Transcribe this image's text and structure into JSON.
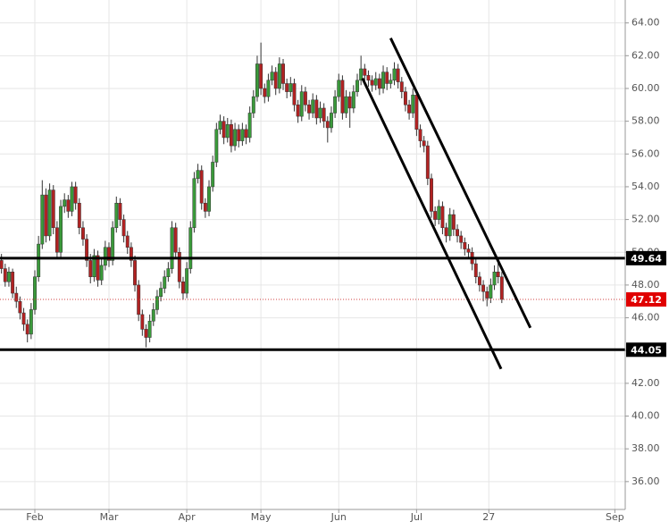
{
  "chart_data": {
    "type": "candlestick",
    "xlim": [
      -9.4,
      159.3
    ],
    "ylim": [
      34.3,
      65.4
    ],
    "xticks": [
      {
        "value": 0,
        "label": "Feb"
      },
      {
        "value": 20,
        "label": "Mar"
      },
      {
        "value": 41,
        "label": "Apr"
      },
      {
        "value": 61,
        "label": "May"
      },
      {
        "value": 82,
        "label": "Jun"
      },
      {
        "value": 103,
        "label": "Jul"
      },
      {
        "value": 122.5,
        "label": "27"
      },
      {
        "value": 156.5,
        "label": "Sep"
      }
    ],
    "yticks": [
      {
        "value": 36,
        "label": "36.00"
      },
      {
        "value": 38,
        "label": "38.00"
      },
      {
        "value": 40,
        "label": "40.00"
      },
      {
        "value": 42,
        "label": "42.00"
      },
      {
        "value": 44,
        "label": "44.00"
      },
      {
        "value": 46,
        "label": "46.00"
      },
      {
        "value": 48,
        "label": "48.00"
      },
      {
        "value": 50,
        "label": "50.00"
      },
      {
        "value": 52,
        "label": "52.00"
      },
      {
        "value": 54,
        "label": "54.00"
      },
      {
        "value": 56,
        "label": "56.00"
      },
      {
        "value": 58,
        "label": "58.00"
      },
      {
        "value": 60,
        "label": "60.00"
      },
      {
        "value": 62,
        "label": "62.00"
      },
      {
        "value": 64,
        "label": "64.00"
      }
    ],
    "grid": true,
    "up_color": "#3a9a3a",
    "down_color": "#b22222",
    "levels": [
      49.64,
      44.05
    ],
    "last_price": 47.12,
    "trendlines": [
      {
        "x": [
          88.4,
          125.8
        ],
        "y": [
          60.62,
          42.88
        ]
      },
      {
        "x": [
          96.0,
          133.7
        ],
        "y": [
          63.07,
          45.39
        ]
      }
    ],
    "x": [
      -9,
      -8,
      -7,
      -6,
      -5,
      -4,
      -3,
      -2,
      -1,
      0,
      1,
      2,
      3,
      4,
      5,
      6,
      7,
      8,
      9,
      10,
      11,
      12,
      13,
      14,
      15,
      16,
      17,
      18,
      19,
      20,
      21,
      22,
      23,
      24,
      25,
      26,
      27,
      28,
      29,
      30,
      31,
      32,
      33,
      34,
      35,
      36,
      37,
      38,
      39,
      40,
      41,
      42,
      43,
      44,
      45,
      46,
      47,
      48,
      49,
      50,
      51,
      52,
      53,
      54,
      55,
      56,
      57,
      58,
      59,
      60,
      61,
      62,
      63,
      64,
      65,
      66,
      67,
      68,
      69,
      70,
      71,
      72,
      73,
      74,
      75,
      76,
      77,
      78,
      79,
      80,
      81,
      82,
      83,
      84,
      85,
      86,
      87,
      88,
      89,
      90,
      91,
      92,
      93,
      94,
      95,
      96,
      97,
      98,
      99,
      100,
      101,
      102,
      103,
      104,
      105,
      106,
      107,
      108,
      109,
      110,
      111,
      112,
      113,
      114,
      115,
      116,
      117,
      118,
      119,
      120,
      121,
      122,
      123,
      124,
      125,
      126
    ],
    "ohlc": [
      [
        49.5,
        49.9,
        48.7,
        49.0
      ],
      [
        49.0,
        49.3,
        47.9,
        48.2
      ],
      [
        48.2,
        49.1,
        47.9,
        48.8
      ],
      [
        48.8,
        49.0,
        47.2,
        47.5
      ],
      [
        47.5,
        47.9,
        46.6,
        47.0
      ],
      [
        47.0,
        47.3,
        45.9,
        46.3
      ],
      [
        46.3,
        46.6,
        45.2,
        45.6
      ],
      [
        45.6,
        45.9,
        44.5,
        45.0
      ],
      [
        45.0,
        46.9,
        44.7,
        46.5
      ],
      [
        46.5,
        48.9,
        46.2,
        48.5
      ],
      [
        48.5,
        51.0,
        48.2,
        50.5
      ],
      [
        50.5,
        54.4,
        50.2,
        53.5
      ],
      [
        53.5,
        53.9,
        50.6,
        51.0
      ],
      [
        51.0,
        54.2,
        50.7,
        53.8
      ],
      [
        53.8,
        54.1,
        51.1,
        51.5
      ],
      [
        51.5,
        51.9,
        49.6,
        50.0
      ],
      [
        50.0,
        53.2,
        49.7,
        52.8
      ],
      [
        52.8,
        53.6,
        52.4,
        53.2
      ],
      [
        53.2,
        53.5,
        52.1,
        52.5
      ],
      [
        52.5,
        54.3,
        52.2,
        54.0
      ],
      [
        54.0,
        54.3,
        52.6,
        53.0
      ],
      [
        53.0,
        53.3,
        51.1,
        51.5
      ],
      [
        51.5,
        51.9,
        50.4,
        50.8
      ],
      [
        50.8,
        51.1,
        49.1,
        49.5
      ],
      [
        49.5,
        49.9,
        48.1,
        48.5
      ],
      [
        48.5,
        50.2,
        48.2,
        49.8
      ],
      [
        49.8,
        50.1,
        47.9,
        48.3
      ],
      [
        48.3,
        49.6,
        48.0,
        49.2
      ],
      [
        49.2,
        50.7,
        48.9,
        50.3
      ],
      [
        50.3,
        50.6,
        49.1,
        49.5
      ],
      [
        49.5,
        51.9,
        49.2,
        51.5
      ],
      [
        51.5,
        53.4,
        51.2,
        53.0
      ],
      [
        53.0,
        53.3,
        51.6,
        52.0
      ],
      [
        52.0,
        52.3,
        50.6,
        51.0
      ],
      [
        51.0,
        51.3,
        49.9,
        50.3
      ],
      [
        50.3,
        50.6,
        49.1,
        49.5
      ],
      [
        49.5,
        49.8,
        47.6,
        48.0
      ],
      [
        48.0,
        48.3,
        45.8,
        46.2
      ],
      [
        46.2,
        46.5,
        44.9,
        45.3
      ],
      [
        45.3,
        45.6,
        44.2,
        44.8
      ],
      [
        44.8,
        46.2,
        44.5,
        45.8
      ],
      [
        45.8,
        46.9,
        45.5,
        46.5
      ],
      [
        46.5,
        47.7,
        46.2,
        47.3
      ],
      [
        47.3,
        48.2,
        47.0,
        47.8
      ],
      [
        47.8,
        48.9,
        47.5,
        48.5
      ],
      [
        48.5,
        49.4,
        48.2,
        49.0
      ],
      [
        49.0,
        51.9,
        48.7,
        51.5
      ],
      [
        51.5,
        51.8,
        49.6,
        50.0
      ],
      [
        50.0,
        50.3,
        47.8,
        48.2
      ],
      [
        48.2,
        48.5,
        47.1,
        47.5
      ],
      [
        47.5,
        49.4,
        47.2,
        49.0
      ],
      [
        49.0,
        51.9,
        48.7,
        51.5
      ],
      [
        51.5,
        54.9,
        51.2,
        54.5
      ],
      [
        54.5,
        55.4,
        54.2,
        55.0
      ],
      [
        55.0,
        55.3,
        52.6,
        53.0
      ],
      [
        53.0,
        53.3,
        52.1,
        52.5
      ],
      [
        52.5,
        54.4,
        52.2,
        54.0
      ],
      [
        54.0,
        55.9,
        53.7,
        55.5
      ],
      [
        55.5,
        57.9,
        55.2,
        57.5
      ],
      [
        57.5,
        58.4,
        57.2,
        58.0
      ],
      [
        58.0,
        58.3,
        56.6,
        57.0
      ],
      [
        57.0,
        58.2,
        56.7,
        57.8
      ],
      [
        57.8,
        58.1,
        56.1,
        56.5
      ],
      [
        56.5,
        57.9,
        56.2,
        57.5
      ],
      [
        57.5,
        57.8,
        56.4,
        56.8
      ],
      [
        56.8,
        57.9,
        56.5,
        57.5
      ],
      [
        57.5,
        57.8,
        56.6,
        57.0
      ],
      [
        57.0,
        58.9,
        56.7,
        58.5
      ],
      [
        58.5,
        59.9,
        58.2,
        59.5
      ],
      [
        59.5,
        62.0,
        59.2,
        61.5
      ],
      [
        61.5,
        62.8,
        59.6,
        60.0
      ],
      [
        60.0,
        60.3,
        59.1,
        59.5
      ],
      [
        59.5,
        60.9,
        59.2,
        60.5
      ],
      [
        60.5,
        61.4,
        60.2,
        61.0
      ],
      [
        61.0,
        61.3,
        59.6,
        60.0
      ],
      [
        60.0,
        61.9,
        59.7,
        61.5
      ],
      [
        61.5,
        61.8,
        59.9,
        60.3
      ],
      [
        60.3,
        60.6,
        59.4,
        59.8
      ],
      [
        59.8,
        60.7,
        59.5,
        60.3
      ],
      [
        60.3,
        60.6,
        58.6,
        59.0
      ],
      [
        59.0,
        59.3,
        57.9,
        58.3
      ],
      [
        58.3,
        60.2,
        58.0,
        59.8
      ],
      [
        59.8,
        60.1,
        58.6,
        59.0
      ],
      [
        59.0,
        59.3,
        58.1,
        58.5
      ],
      [
        58.5,
        59.7,
        58.2,
        59.3
      ],
      [
        59.3,
        59.6,
        57.8,
        58.2
      ],
      [
        58.2,
        59.2,
        57.9,
        58.8
      ],
      [
        58.8,
        59.1,
        57.6,
        58.0
      ],
      [
        58.0,
        58.3,
        56.7,
        57.6
      ],
      [
        57.6,
        58.9,
        57.3,
        58.5
      ],
      [
        58.5,
        59.9,
        58.2,
        59.5
      ],
      [
        59.5,
        60.9,
        59.2,
        60.5
      ],
      [
        60.5,
        60.8,
        58.1,
        58.5
      ],
      [
        58.5,
        59.9,
        58.2,
        59.5
      ],
      [
        59.5,
        59.8,
        57.6,
        58.8
      ],
      [
        58.8,
        60.2,
        58.5,
        59.8
      ],
      [
        59.8,
        60.9,
        59.5,
        60.5
      ],
      [
        60.5,
        62.0,
        60.2,
        61.2
      ],
      [
        61.2,
        61.5,
        60.4,
        60.8
      ],
      [
        60.8,
        61.1,
        60.1,
        60.5
      ],
      [
        60.5,
        60.8,
        59.8,
        60.2
      ],
      [
        60.2,
        61.0,
        59.9,
        60.6
      ],
      [
        60.6,
        60.9,
        59.6,
        60.0
      ],
      [
        60.0,
        61.4,
        59.7,
        61.0
      ],
      [
        61.0,
        61.3,
        59.9,
        60.3
      ],
      [
        60.3,
        60.9,
        60.0,
        60.5
      ],
      [
        60.5,
        61.6,
        60.2,
        61.2
      ],
      [
        61.2,
        61.5,
        60.0,
        60.4
      ],
      [
        60.4,
        60.7,
        59.4,
        59.8
      ],
      [
        59.8,
        60.1,
        58.6,
        59.0
      ],
      [
        59.0,
        59.3,
        58.1,
        58.5
      ],
      [
        58.5,
        60.0,
        58.2,
        59.6
      ],
      [
        59.6,
        59.9,
        57.1,
        57.5
      ],
      [
        57.5,
        57.8,
        56.4,
        56.8
      ],
      [
        56.8,
        57.1,
        56.1,
        56.5
      ],
      [
        56.5,
        56.8,
        54.1,
        54.5
      ],
      [
        54.5,
        54.8,
        52.1,
        52.5
      ],
      [
        52.5,
        52.8,
        51.6,
        52.0
      ],
      [
        52.0,
        53.2,
        51.7,
        52.8
      ],
      [
        52.8,
        53.1,
        51.1,
        51.5
      ],
      [
        51.5,
        51.8,
        50.6,
        51.0
      ],
      [
        51.0,
        52.7,
        50.7,
        52.3
      ],
      [
        52.3,
        52.6,
        51.0,
        51.4
      ],
      [
        51.4,
        51.7,
        50.6,
        51.0
      ],
      [
        51.0,
        51.3,
        50.2,
        50.6
      ],
      [
        50.6,
        50.9,
        49.8,
        50.2
      ],
      [
        50.2,
        50.5,
        49.6,
        50.0
      ],
      [
        50.0,
        50.3,
        48.9,
        49.3
      ],
      [
        49.3,
        49.6,
        48.1,
        48.5
      ],
      [
        48.5,
        48.8,
        47.6,
        48.0
      ],
      [
        48.0,
        48.3,
        47.0,
        47.6
      ],
      [
        47.6,
        47.9,
        46.7,
        47.2
      ],
      [
        47.2,
        48.4,
        46.9,
        48.0
      ],
      [
        48.0,
        49.2,
        47.7,
        48.8
      ],
      [
        48.8,
        49.4,
        48.1,
        48.5
      ],
      [
        48.5,
        48.8,
        46.9,
        47.12
      ]
    ]
  }
}
